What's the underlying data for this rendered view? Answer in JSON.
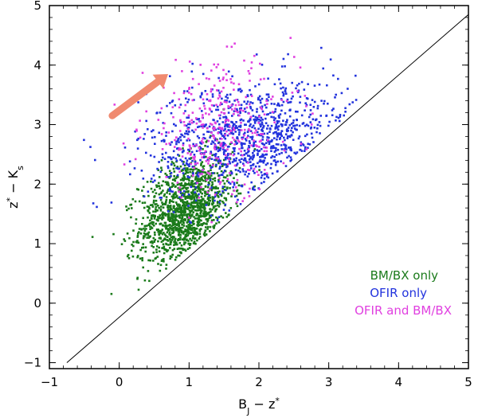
{
  "chart_data": {
    "type": "scatter",
    "title": "",
    "xlabel": "B_J − z*",
    "ylabel": "z* − K_s",
    "xlim": [
      -1,
      5
    ],
    "ylim": [
      -1.1,
      5
    ],
    "x_ticks": [
      "−1",
      "0",
      "1",
      "2",
      "3",
      "4",
      "5"
    ],
    "y_ticks": [
      "−1",
      "0",
      "1",
      "2",
      "3",
      "4",
      "5"
    ],
    "grid": false,
    "legend_position": "lower-right",
    "series": [
      {
        "name": "BM/BX only",
        "color": "#1a7a1a",
        "n_points": 1300,
        "distribution": {
          "x_center": 0.95,
          "y_center": 1.55,
          "x_sigma": 0.33,
          "y_sigma": 0.45,
          "correlation": 0.35
        }
      },
      {
        "name": "OFIR only",
        "color": "#2233dd",
        "n_points": 1000,
        "distribution": {
          "x_center": 1.9,
          "y_center": 2.75,
          "x_sigma": 0.75,
          "y_sigma": 0.5,
          "correlation": 0.15
        }
      },
      {
        "name": "OFIR and BM/BX",
        "color": "#e040e0",
        "n_points": 350,
        "distribution": {
          "x_center": 1.45,
          "y_center": 2.9,
          "x_sigma": 0.55,
          "y_sigma": 0.55,
          "correlation": 0.0
        }
      }
    ],
    "reference_line": {
      "x": [
        -0.75,
        5.0
      ],
      "y": [
        -1.0,
        4.85
      ],
      "color": "#000000"
    },
    "annotations": [
      {
        "kind": "arrow",
        "color": "#f08a70",
        "from": [
          -0.1,
          3.15
        ],
        "to": [
          0.7,
          3.85
        ]
      }
    ],
    "legend": [
      {
        "label": "BM/BX only",
        "color": "#1a7a1a"
      },
      {
        "label": "OFIR only",
        "color": "#2233dd"
      },
      {
        "label": "OFIR and BM/BX",
        "color": "#e040e0"
      }
    ]
  }
}
